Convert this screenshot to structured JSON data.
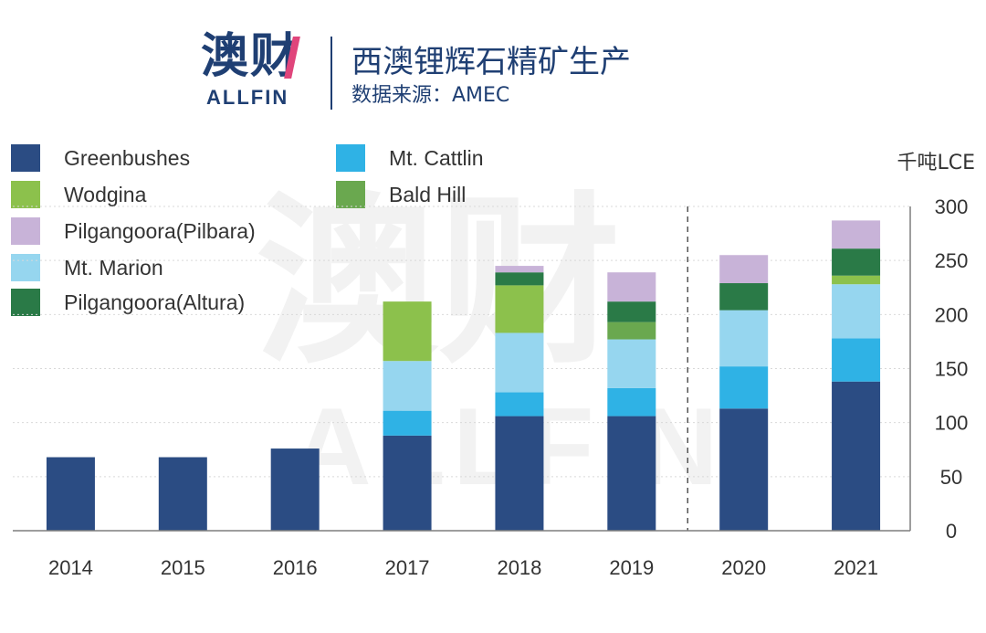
{
  "header": {
    "logo_cn": "澳财",
    "logo_en": "ALLFIN",
    "title": "西澳锂辉石精矿生产",
    "subtitle": "数据来源：AMEC"
  },
  "watermark": {
    "cn": "澳财",
    "en": "ALLFIN"
  },
  "chart_data": {
    "type": "bar",
    "stacked": true,
    "categories": [
      "2014",
      "2015",
      "2016",
      "2017",
      "2018",
      "2019",
      "2020",
      "2021"
    ],
    "ylim": [
      0,
      300
    ],
    "yticks": [
      0,
      50,
      100,
      150,
      200,
      250,
      300
    ],
    "unit": "千吨LCE",
    "grid": true,
    "legend_position": "top-left",
    "forecast_divider_after": "2019",
    "series": [
      {
        "name": "Greenbushes",
        "color": "#2b4c83",
        "values": [
          68,
          68,
          76,
          88,
          106,
          106,
          113,
          138
        ]
      },
      {
        "name": "Mt. Cattlin",
        "color": "#2fb2e5",
        "values": [
          0,
          0,
          0,
          23,
          22,
          26,
          39,
          40
        ]
      },
      {
        "name": "Mt. Marion",
        "color": "#96d6ef",
        "values": [
          0,
          0,
          0,
          46,
          55,
          45,
          52,
          50
        ]
      },
      {
        "name": "Bald Hill",
        "color": "#6aa84f",
        "values": [
          0,
          0,
          0,
          0,
          0,
          16,
          0,
          0
        ]
      },
      {
        "name": "Wodgina",
        "color": "#8cc14c",
        "values": [
          0,
          0,
          0,
          55,
          44,
          0,
          0,
          8
        ]
      },
      {
        "name": "Pilgangoora(Altura)",
        "color": "#2a7a47",
        "values": [
          0,
          0,
          0,
          0,
          12,
          19,
          25,
          25
        ]
      },
      {
        "name": "Pilgangoora(Pilbara)",
        "color": "#c8b3d8",
        "values": [
          0,
          0,
          0,
          0,
          6,
          27,
          26,
          26
        ]
      }
    ],
    "legend_order": [
      "Greenbushes",
      "Mt. Cattlin",
      "Wodgina",
      "Bald Hill",
      "Pilgangoora(Pilbara)",
      "Mt. Marion",
      "Pilgangoora(Altura)"
    ]
  }
}
